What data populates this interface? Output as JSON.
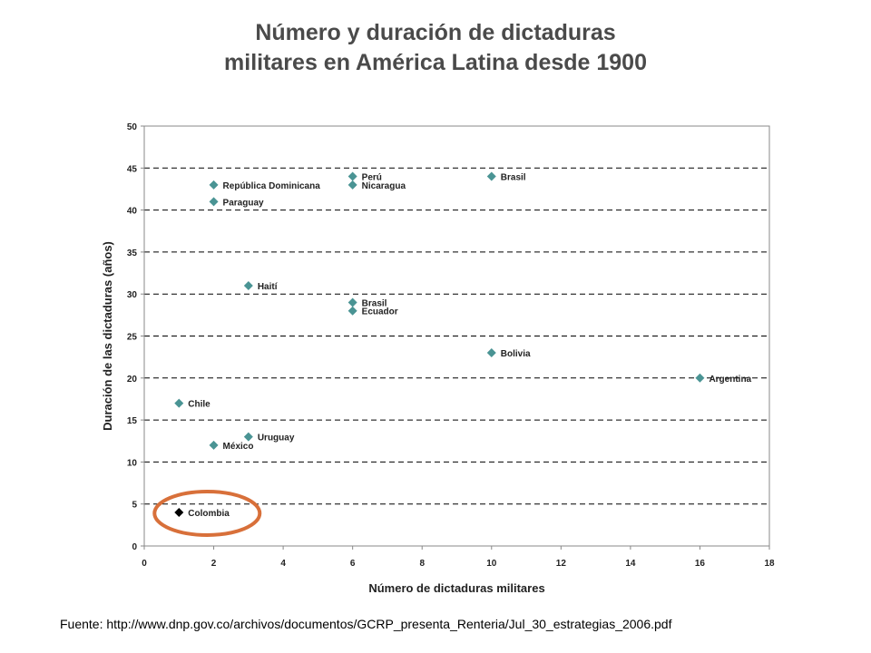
{
  "page": {
    "title_line1": "Número y duración de dictaduras",
    "title_line2": "militares en América Latina desde 1900",
    "source_prefix": "Fuente:",
    "source_url": "http://www.dnp.gov.co/archivos/documentos/GCRP_presenta_Renteria/Jul_30_estrategias_2006.pdf"
  },
  "chart_data": {
    "type": "scatter",
    "title": "Número y duración de dictaduras militares en América Latina desde 1900",
    "xlabel": "Número de dictaduras militares",
    "ylabel": "Duración de las dictaduras (años)",
    "xlim": [
      0,
      18
    ],
    "ylim": [
      0,
      50
    ],
    "xticks": [
      "0",
      "2",
      "4",
      "6",
      "8",
      "10",
      "12",
      "14",
      "16",
      "18"
    ],
    "yticks": [
      "0",
      "5",
      "10",
      "15",
      "20",
      "25",
      "30",
      "35",
      "40",
      "45",
      "50"
    ],
    "grid": "horizontal dashed",
    "marker_color": "#4a9494",
    "highlight_color": "#000000",
    "highlight_ring_color": "#d8703a",
    "points": [
      {
        "label": "República Dominicana",
        "x": 2,
        "y": 43
      },
      {
        "label": "Paraguay",
        "x": 2,
        "y": 41
      },
      {
        "label": "Perú",
        "x": 6,
        "y": 44
      },
      {
        "label": "Nicaragua",
        "x": 6,
        "y": 43
      },
      {
        "label": "Brasil",
        "x": 10,
        "y": 44
      },
      {
        "label": "Haití",
        "x": 3,
        "y": 31
      },
      {
        "label": "Brasil",
        "x": 6,
        "y": 29
      },
      {
        "label": "Ecuador",
        "x": 6,
        "y": 28
      },
      {
        "label": "Bolivia",
        "x": 10,
        "y": 23
      },
      {
        "label": "Argentina",
        "x": 16,
        "y": 20
      },
      {
        "label": "Chile",
        "x": 1,
        "y": 17
      },
      {
        "label": "Uruguay",
        "x": 3,
        "y": 13
      },
      {
        "label": "México",
        "x": 2,
        "y": 12
      },
      {
        "label": "Colombia",
        "x": 1,
        "y": 4,
        "highlight": true
      }
    ]
  }
}
